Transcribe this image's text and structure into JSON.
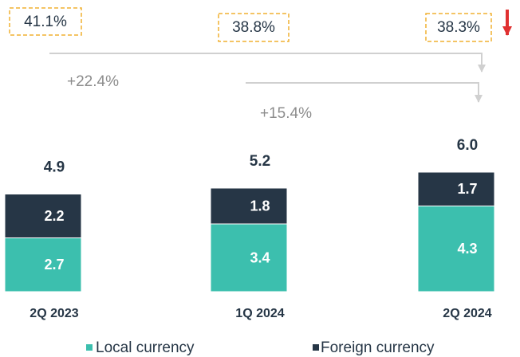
{
  "chart_data": {
    "type": "stacked_bar",
    "categories": [
      "2Q 2023",
      "1Q 2024",
      "2Q 2024"
    ],
    "series": [
      {
        "name": "Local currency",
        "color": "#3cbfae",
        "values": [
          2.7,
          3.4,
          4.3
        ]
      },
      {
        "name": "Foreign currency",
        "color": "#263646",
        "values": [
          2.2,
          1.8,
          1.7
        ]
      }
    ],
    "totals": {
      "values": [
        4.9,
        5.2,
        6.0
      ],
      "value_labels": [
        "4.9",
        "5.2",
        "6.0"
      ]
    },
    "annotations": {
      "shares": [
        "41.1%",
        "38.8%",
        "38.3%"
      ],
      "growth": [
        "+22.4%",
        "+15.4%"
      ]
    }
  }
}
